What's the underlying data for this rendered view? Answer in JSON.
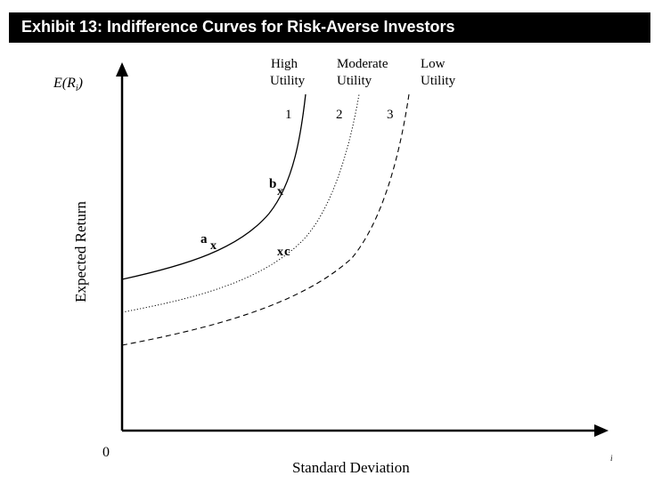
{
  "header": {
    "title": "Exhibit 13: Indifference Curves for Risk-Averse Investors"
  },
  "axes": {
    "y_label": "Expected Return",
    "y_symbol_main": "E(R",
    "y_symbol_sub": "i",
    "y_symbol_close": ")",
    "x_label": "Standard Deviation",
    "x_stray_mark": "i",
    "origin": "0"
  },
  "utility_labels": [
    {
      "line1": "High",
      "line2": "Utility",
      "number": "1"
    },
    {
      "line1": "Moderate",
      "line2": "Utility",
      "number": "2"
    },
    {
      "line1": "Low",
      "line2": "Utility",
      "number": "3"
    }
  ],
  "points": [
    {
      "letter": "a",
      "mark": "x"
    },
    {
      "letter": "b",
      "mark": "x"
    },
    {
      "letter": "c",
      "mark": "x"
    }
  ]
}
